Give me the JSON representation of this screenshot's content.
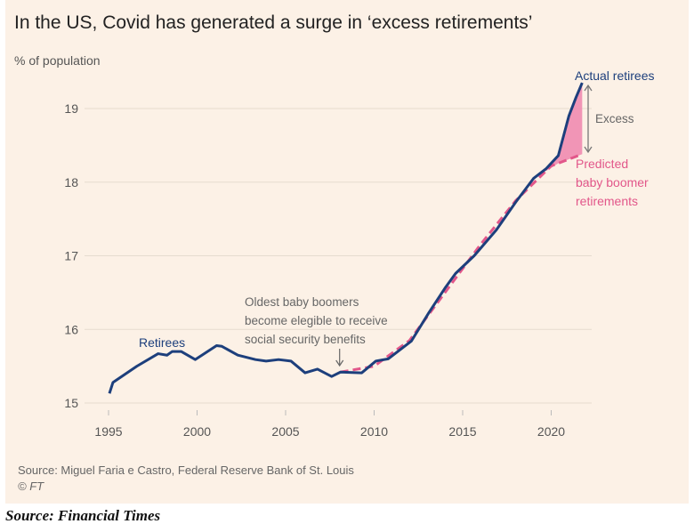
{
  "chart_data": {
    "type": "line",
    "title": "In the US, Covid has generated a surge in ‘excess retirements’",
    "ylabel": "% of population",
    "xlabel": "",
    "xlim": [
      1993.7,
      2023.2
    ],
    "ylim": [
      15,
      19.5
    ],
    "x_ticks": [
      "1995",
      "2000",
      "2005",
      "2010",
      "2015",
      "2020"
    ],
    "y_ticks": [
      "15",
      "16",
      "17",
      "18",
      "19"
    ],
    "grid": "horizontal",
    "series": [
      {
        "name": "Retirees",
        "end_label": "Actual retirees",
        "color": "#1d3f7c",
        "style": "solid",
        "x": [
          1995.05,
          1995.25,
          1996.6,
          1997.8,
          1998.3,
          1998.6,
          1999.1,
          1999.9,
          2001.1,
          2001.4,
          2002.3,
          2003.3,
          2003.9,
          2004.6,
          2005.3,
          2006.1,
          2006.8,
          2007.6,
          2008.1,
          2009.3,
          2010.1,
          2010.8,
          2012.1,
          2013.1,
          2014.0,
          2014.6,
          2015.65,
          2016.9,
          2018.0,
          2019.0,
          2019.7,
          2020.4,
          2021.0,
          2021.4,
          2021.75
        ],
        "y": [
          15.13,
          15.28,
          15.5,
          15.67,
          15.65,
          15.7,
          15.7,
          15.59,
          15.78,
          15.77,
          15.65,
          15.59,
          15.57,
          15.59,
          15.57,
          15.41,
          15.46,
          15.36,
          15.42,
          15.41,
          15.57,
          15.6,
          15.84,
          16.23,
          16.56,
          16.76,
          17.0,
          17.35,
          17.73,
          18.05,
          18.18,
          18.36,
          18.9,
          19.15,
          19.35
        ]
      },
      {
        "name": "Predicted baby boomer retirements",
        "color": "#e2578a",
        "style": "dashed",
        "x": [
          2008.1,
          2010,
          2012,
          2014,
          2016,
          2018,
          2020,
          2021.75
        ],
        "y": [
          15.42,
          15.5,
          15.85,
          16.5,
          17.15,
          17.75,
          18.22,
          18.38
        ]
      }
    ],
    "annotations": {
      "boomers": [
        "Oldest baby boomers",
        "become elegible to receive",
        "social security benefits"
      ],
      "boomers_year": 2008,
      "excess": "Excess",
      "predicted": [
        "Predicted",
        "baby boomer",
        "retirements"
      ]
    },
    "fill_color": "#f08bb0",
    "background": "#fcf1e6"
  },
  "source": "Source: Miguel Faria e Castro, Federal Reserve Bank of St. Louis",
  "copyright": "© FT",
  "footer": "Source: Financial Times"
}
